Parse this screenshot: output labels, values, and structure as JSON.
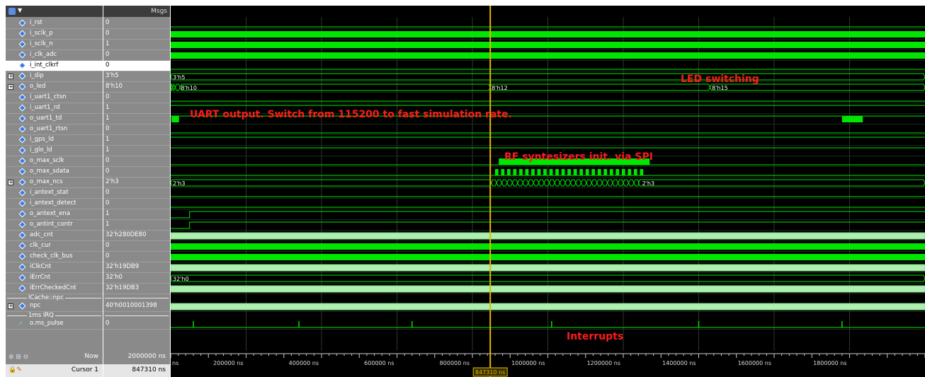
{
  "header": {
    "values_title": "Msgs"
  },
  "signals": [
    {
      "name": "i_rst",
      "value": "0",
      "expand": false,
      "selected": false
    },
    {
      "name": "i_sclk_p",
      "value": "0",
      "expand": false,
      "selected": false
    },
    {
      "name": "i_sclk_n",
      "value": "1",
      "expand": false,
      "selected": false
    },
    {
      "name": "i_clk_adc",
      "value": "0",
      "expand": false,
      "selected": false
    },
    {
      "name": "i_int_clkrf",
      "value": "0",
      "expand": false,
      "selected": true
    },
    {
      "name": "i_dip",
      "value": "3'h5",
      "expand": true,
      "selected": false
    },
    {
      "name": "o_led",
      "value": "8'h10",
      "expand": true,
      "selected": false
    },
    {
      "name": "i_uart1_ctsn",
      "value": "0",
      "expand": false,
      "selected": false
    },
    {
      "name": "i_uart1_rd",
      "value": "1",
      "expand": false,
      "selected": false
    },
    {
      "name": "o_uart1_td",
      "value": "1",
      "expand": false,
      "selected": false
    },
    {
      "name": "o_uart1_rtsn",
      "value": "0",
      "expand": false,
      "selected": false
    },
    {
      "name": "i_gps_ld",
      "value": "1",
      "expand": false,
      "selected": false
    },
    {
      "name": "i_glo_ld",
      "value": "1",
      "expand": false,
      "selected": false
    },
    {
      "name": "o_max_sclk",
      "value": "0",
      "expand": false,
      "selected": false
    },
    {
      "name": "o_max_sdata",
      "value": "0",
      "expand": false,
      "selected": false
    },
    {
      "name": "o_max_ncs",
      "value": "2'h3",
      "expand": true,
      "selected": false
    },
    {
      "name": "i_antext_stat",
      "value": "0",
      "expand": false,
      "selected": false
    },
    {
      "name": "i_antext_detect",
      "value": "0",
      "expand": false,
      "selected": false
    },
    {
      "name": "o_antext_ena",
      "value": "1",
      "expand": false,
      "selected": false
    },
    {
      "name": "o_antint_contr",
      "value": "1",
      "expand": false,
      "selected": false
    },
    {
      "name": "adc_cnt",
      "value": "32'h280DE80",
      "expand": false,
      "selected": false
    },
    {
      "name": "clk_cur",
      "value": "0",
      "expand": false,
      "selected": false
    },
    {
      "name": "check_clk_bus",
      "value": "0",
      "expand": false,
      "selected": false
    },
    {
      "name": "iClkCnt",
      "value": "32'h19DB9",
      "expand": false,
      "selected": false
    },
    {
      "name": "iErrCnt",
      "value": "32'h0",
      "expand": false,
      "selected": false
    },
    {
      "name": "iErrCheckedCnt",
      "value": "32'h19DB3",
      "expand": false,
      "selected": false
    }
  ],
  "dividers": [
    {
      "label": "ICache::npc"
    },
    {
      "label": "1ms IRQ"
    }
  ],
  "signals2": [
    {
      "name": "npc",
      "value": "40'h0010001398",
      "expand": true
    }
  ],
  "signals3": [
    {
      "name": "o.ms_pulse",
      "value": "0"
    }
  ],
  "bus_labels": {
    "i_dip": "3'h5",
    "o_led": [
      "8'h10",
      "8'h12",
      "8'h15"
    ],
    "o_max_ncs": [
      "2'h3",
      "2'h3"
    ],
    "iErrCnt": "32'h0"
  },
  "annotations": {
    "led": "LED switching",
    "uart": "UART output. Switch from 115200 to fast simulation rate.",
    "spi": "RF syntesizers init. via SPI",
    "irq": "Interrupts"
  },
  "footer": {
    "now_label": "Now",
    "now_value": "2000000 ns",
    "cursor_label": "Cursor 1",
    "cursor_value": "847310 ns",
    "cursor_marker": "847310 ns"
  },
  "timeline": {
    "start_label": "ns",
    "ticks": [
      {
        "t": 200000,
        "label": "200000 ns"
      },
      {
        "t": 400000,
        "label": "400000 ns"
      },
      {
        "t": 600000,
        "label": "600000 ns"
      },
      {
        "t": 800000,
        "label": "800000 ns"
      },
      {
        "t": 1000000,
        "label": "1000000 ns"
      },
      {
        "t": 1200000,
        "label": "1200000 ns"
      },
      {
        "t": 1400000,
        "label": "1400000 ns"
      },
      {
        "t": 1600000,
        "label": "1600000 ns"
      },
      {
        "t": 1800000,
        "label": "1800000 ns"
      }
    ],
    "cursor_time": 847310
  },
  "colors": {
    "wave": "#00e600",
    "bus": "#aef0b0",
    "cursor": "#e6b800",
    "annotation": "#ff1a1a"
  }
}
